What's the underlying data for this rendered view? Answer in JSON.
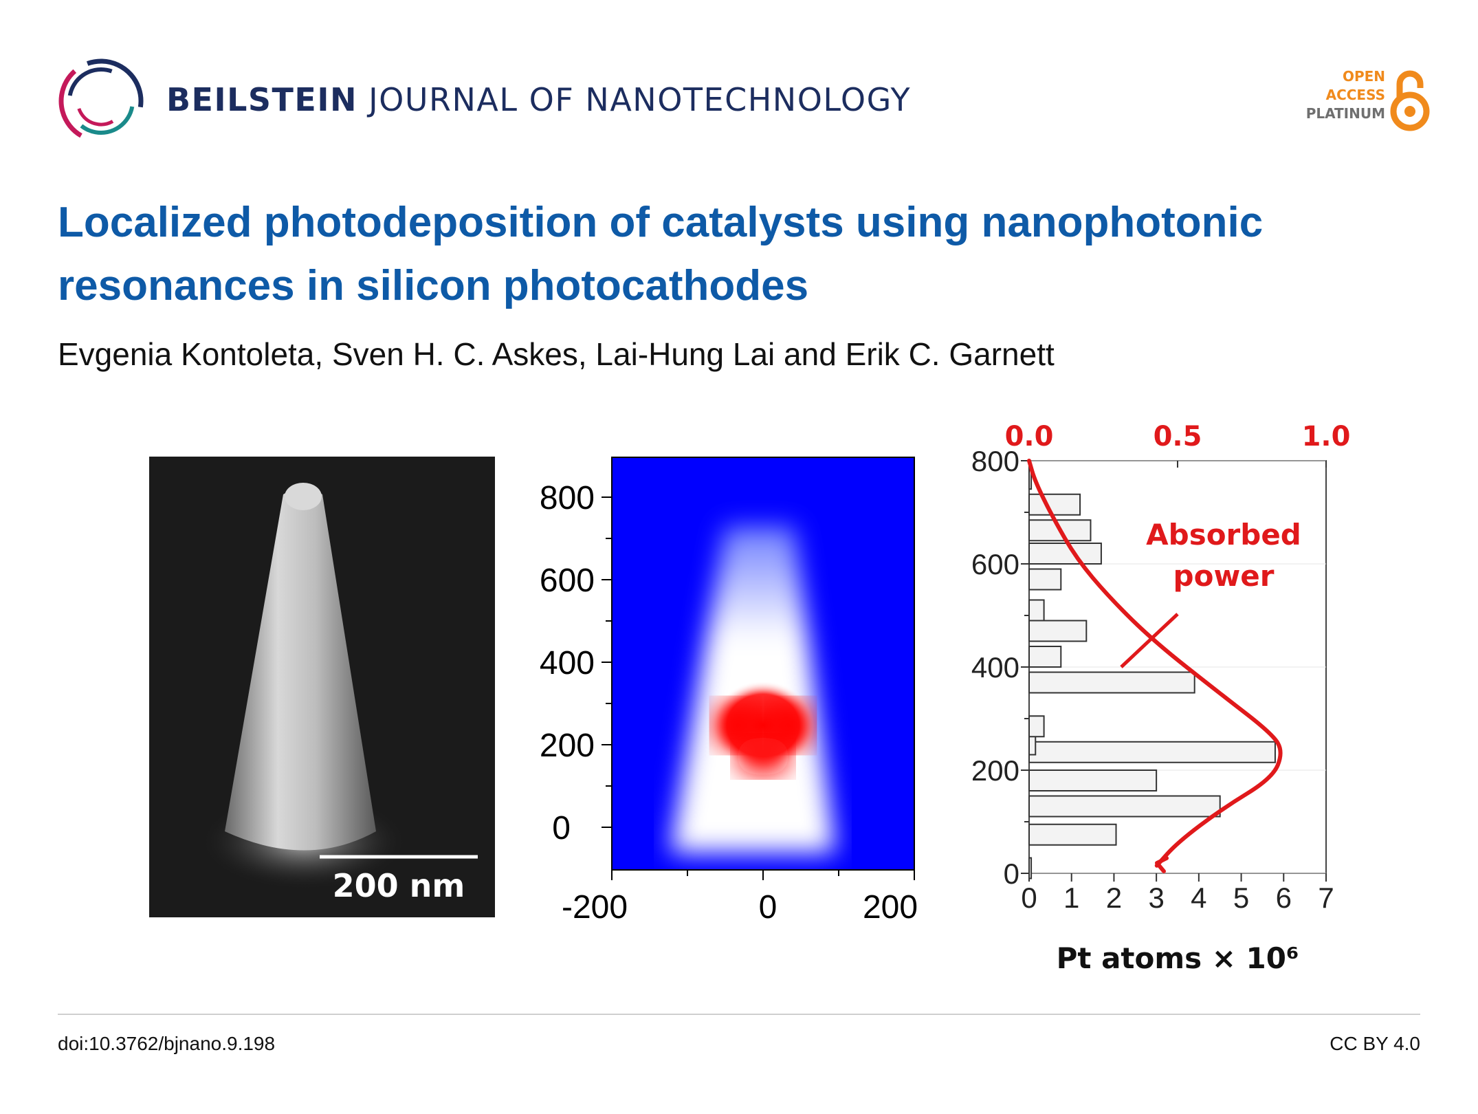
{
  "header": {
    "journal_bold": "BEILSTEIN",
    "journal_rest": "JOURNAL OF NANOTECHNOLOGY",
    "oa_line1": "OPEN",
    "oa_line2": "ACCESS",
    "oa_line3": "PLATINUM"
  },
  "article": {
    "title_line1": "Localized photodeposition of catalysts using nanophotonic",
    "title_line2": "resonances in silicon photocathodes",
    "authors": "Evgenia Kontoleta, Sven H. C. Askes, Lai-Hung Lai and Erik C. Garnett"
  },
  "figure": {
    "sem_scalebar": "200 nm",
    "sim_yticks": [
      "800",
      "600",
      "400",
      "200",
      "0"
    ],
    "sim_xticks": [
      "-200",
      "0",
      "200"
    ],
    "colors": {
      "blue": "#0000ff",
      "red": "#ff0000",
      "plot_red": "#e0191b",
      "bar_fill": "#f3f3f3"
    }
  },
  "chart_data": {
    "type": "bar",
    "orientation": "horizontal",
    "y": [
      10,
      75,
      130,
      180,
      235,
      250,
      285,
      370,
      420,
      470,
      510,
      570,
      620,
      665,
      715,
      765
    ],
    "values": [
      0.05,
      2.05,
      4.5,
      3.0,
      5.8,
      0.15,
      0.35,
      3.9,
      0.75,
      1.35,
      0.35,
      0.75,
      1.7,
      1.45,
      1.2,
      0.05
    ],
    "xlim": [
      0,
      7
    ],
    "ylim": [
      0,
      800
    ],
    "xticks": [
      "0",
      "1",
      "2",
      "3",
      "4",
      "5",
      "6",
      "7"
    ],
    "yticks": [
      "0",
      "200",
      "400",
      "600",
      "800"
    ],
    "xlabel": "Pt atoms × 10⁶",
    "top_axis": {
      "ticks": [
        "0.0",
        "0.5",
        "1.0"
      ],
      "lim": [
        0,
        1
      ]
    },
    "curve": {
      "name": "Absorbed power",
      "label_line1": "Absorbed",
      "label_line2": "power",
      "points": [
        [
          0.43,
          15
        ],
        [
          0.5,
          60
        ],
        [
          0.65,
          125
        ],
        [
          0.82,
          185
        ],
        [
          0.855,
          235
        ],
        [
          0.82,
          270
        ],
        [
          0.64,
          350
        ],
        [
          0.42,
          450
        ],
        [
          0.27,
          535
        ],
        [
          0.16,
          610
        ],
        [
          0.08,
          690
        ],
        [
          0.02,
          760
        ],
        [
          0.0,
          800
        ]
      ]
    }
  },
  "footer": {
    "doi": "doi:10.3762/bjnano.9.198",
    "license": "CC BY 4.0"
  }
}
